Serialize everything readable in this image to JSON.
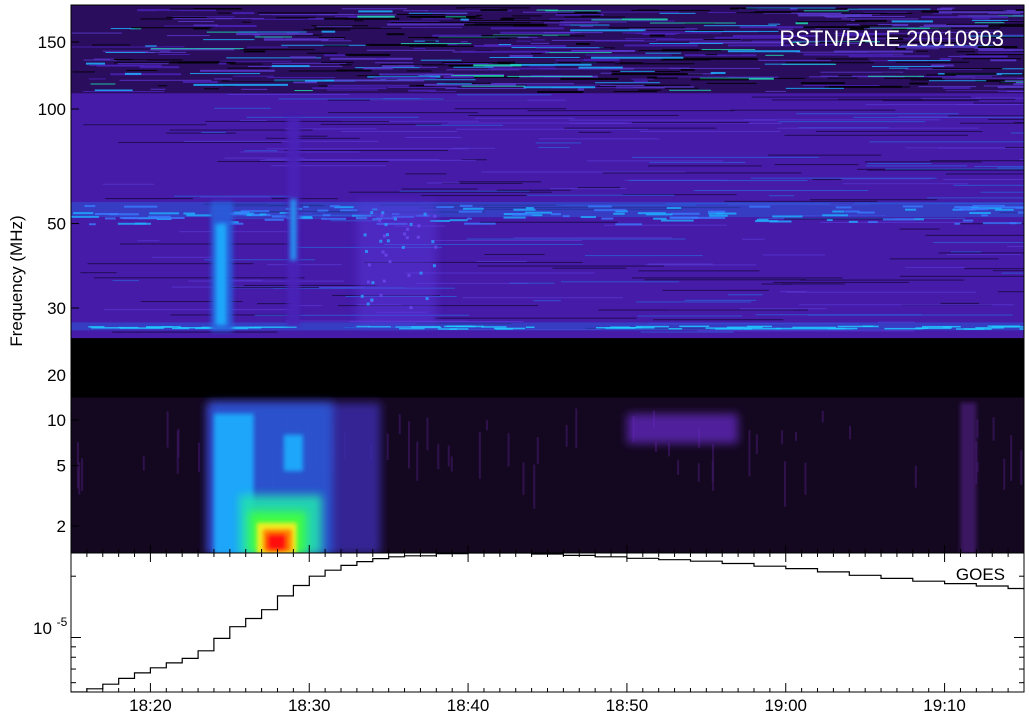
{
  "chart_data": [
    {
      "type": "heatmap",
      "title": "RSTN/PALE 20010903",
      "ylabel": "Frequency (MHz)",
      "yscale": "log",
      "ylim": [
        1.3,
        180
      ],
      "xlim": [
        "18:15",
        "19:15"
      ],
      "y_ticks": [
        {
          "value": 150,
          "label": "150"
        },
        {
          "value": 100,
          "label": "100"
        },
        {
          "value": 50,
          "label": "50"
        },
        {
          "value": 30,
          "label": "30"
        },
        {
          "value": 20,
          "label": "20"
        },
        {
          "value": 10,
          "label": "10"
        },
        {
          "value": 5,
          "label": "5"
        },
        {
          "value": 2,
          "label": "2"
        }
      ],
      "no_data_band_mhz": [
        14,
        25
      ],
      "colormap": [
        "#000000",
        "#3a0a78",
        "#4a22b8",
        "#2a5ad8",
        "#1fb0ff",
        "#20e0b0",
        "#40ff40",
        "#f0f020",
        "#ff8000",
        "#ff1010"
      ],
      "features": [
        {
          "kind": "type III burst",
          "minute_range": [
            23.8,
            25.2
          ],
          "freq_range_mhz": [
            1.3,
            57
          ],
          "intensity": "high"
        },
        {
          "kind": "type III burst",
          "minute_range": [
            28.6,
            29.4
          ],
          "freq_range_mhz": [
            1.3,
            95
          ],
          "intensity": "medium"
        },
        {
          "kind": "peak emission",
          "minute_center": 28.0,
          "freq_center_mhz": 1.6,
          "intensity": "max"
        },
        {
          "kind": "type II burst",
          "minute_range": [
            33,
            38
          ],
          "freq_range_mhz": [
            27,
            57
          ],
          "intensity": "low"
        },
        {
          "kind": "type II burst",
          "minute_range": [
            50,
            57
          ],
          "freq_range_mhz": [
            7,
            11
          ],
          "intensity": "low"
        },
        {
          "kind": "faint burst",
          "minute_range": [
            71,
            72
          ],
          "freq_range_mhz": [
            1.3,
            13
          ],
          "intensity": "low"
        }
      ]
    },
    {
      "type": "line",
      "series": [
        {
          "name": "GOES"
        }
      ],
      "yscale": "log",
      "ytick_label_base": "10",
      "ytick_label_exp": "-5",
      "ytick_value": 1e-05,
      "ylim": [
        5.4e-06,
        2.6e-05
      ],
      "x_minutes_after_1800": [
        15,
        16,
        17,
        18,
        19,
        20,
        21,
        22,
        23,
        24,
        25,
        26,
        27,
        28,
        29,
        30,
        31,
        32,
        33,
        34,
        35,
        36,
        38,
        40,
        42,
        44,
        46,
        48,
        50,
        52,
        54,
        56,
        58,
        60,
        62,
        64,
        66,
        68,
        70,
        72,
        74,
        75
      ],
      "flux_w_m2": [
        5.4e-06,
        5.6e-06,
        5.9e-06,
        6.3e-06,
        6.7e-06,
        7.1e-06,
        7.5e-06,
        7.9e-06,
        8.6e-06,
        9.9e-06,
        1.13e-05,
        1.24e-05,
        1.37e-05,
        1.6e-05,
        1.8e-05,
        2e-05,
        2.14e-05,
        2.26e-05,
        2.36e-05,
        2.44e-05,
        2.49e-05,
        2.52e-05,
        2.58e-05,
        2.6e-05,
        2.6e-05,
        2.57e-05,
        2.53e-05,
        2.49e-05,
        2.45e-05,
        2.41e-05,
        2.37e-05,
        2.31e-05,
        2.24e-05,
        2.18e-05,
        2.1e-05,
        2.02e-05,
        1.95e-05,
        1.89e-05,
        1.84e-05,
        1.79e-05,
        1.74e-05,
        1.71e-05
      ]
    }
  ],
  "x_axis": {
    "ticks": [
      {
        "minute": 20,
        "label": "18:20"
      },
      {
        "minute": 30,
        "label": "18:30"
      },
      {
        "minute": 40,
        "label": "18:40"
      },
      {
        "minute": 50,
        "label": "18:50"
      },
      {
        "minute": 60,
        "label": "19:00"
      },
      {
        "minute": 70,
        "label": "19:10"
      }
    ]
  }
}
